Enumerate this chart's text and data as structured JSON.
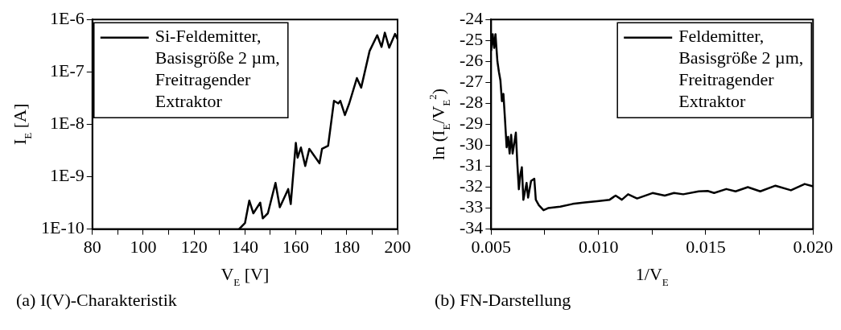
{
  "chart_data": [
    {
      "type": "line",
      "xlabel": "V$_{E}$ [V]",
      "ylabel": "I$_{E}$ [A]",
      "annotations": [
        "(a) I(V)-Charakteristik"
      ],
      "log": "y",
      "legend": "top left",
      "xlim": [
        80,
        200
      ],
      "xticks": [
        80,
        {
          "value": 90,
          "label": null
        },
        100,
        {
          "value": 110,
          "label": null
        },
        120,
        {
          "value": 130,
          "label": null
        },
        140,
        {
          "value": 150,
          "label": null
        },
        160,
        {
          "value": 170,
          "label": null
        },
        180,
        {
          "value": 190,
          "label": null
        },
        200
      ],
      "ylim": [
        1e-10,
        1e-06
      ],
      "yticks": [
        {
          "value": 1e-10,
          "label": "1E-10"
        },
        {
          "value": 1e-09,
          "label": "1E-9"
        },
        {
          "value": 1e-08,
          "label": "1E-8"
        },
        {
          "value": 1e-07,
          "label": "1E-7"
        },
        {
          "value": 1e-06,
          "label": "1E-6"
        }
      ],
      "series": [
        {
          "name": "Si-Feldemitter, Basisgröße 2 µm, Freitragender Extraktor",
          "color": "#000000",
          "x": [
            137.7,
            140,
            141.7,
            143.3,
            146,
            147,
            149,
            152,
            153.7,
            157,
            158,
            160,
            160.7,
            162,
            163.7,
            165.3,
            167,
            169.3,
            170.3,
            172.7,
            175,
            176.7,
            177.5,
            179.3,
            181,
            184,
            185.7,
            189,
            192,
            193.7,
            195,
            196.7,
            199,
            200
          ],
          "values": [
            1e-10,
            1.3e-10,
            3.5e-10,
            2e-10,
            3.2e-10,
            1.6e-10,
            2e-10,
            7.6e-10,
            2.6e-10,
            5.8e-10,
            3e-10,
            4.4e-09,
            2.3e-09,
            3.6e-09,
            1.6e-09,
            3.4e-09,
            2.6e-09,
            1.8e-09,
            3.4e-09,
            3.9e-09,
            2.8e-08,
            2.5e-08,
            2.8e-08,
            1.5e-08,
            2.5e-08,
            7.6e-08,
            5e-08,
            2.5e-07,
            5e-07,
            3e-07,
            5.6e-07,
            2.9e-07,
            5.3e-07,
            4.2e-07
          ]
        }
      ]
    },
    {
      "type": "line",
      "xlabel": "1/V$_{E}$",
      "ylabel": "ln (I$_{E}$/V$_{E}$$^{2}$)",
      "annotations": [
        "(b) FN-Darstellung"
      ],
      "legend": "top right",
      "xlim": [
        0.005,
        0.02
      ],
      "xticks": [
        {
          "value": 0.005,
          "label": "0.005"
        },
        {
          "value": 0.0075,
          "label": null
        },
        {
          "value": 0.01,
          "label": "0.010"
        },
        {
          "value": 0.0125,
          "label": null
        },
        {
          "value": 0.015,
          "label": "0.015"
        },
        {
          "value": 0.0175,
          "label": null
        },
        {
          "value": 0.02,
          "label": "0.020"
        }
      ],
      "ylim": [
        -34,
        -24
      ],
      "yticks": [
        -34,
        -33,
        -32,
        -31,
        -30,
        -29,
        -28,
        -27,
        -26,
        -25,
        -24
      ],
      "series": [
        {
          "name": "Feldemitter, Basisgröße 2 µm, Freitragender Extraktor",
          "color": "#000000",
          "x": [
            0.005,
            0.00507,
            0.00514,
            0.0052,
            0.00529,
            0.00536,
            0.00543,
            0.0055,
            0.00557,
            0.00564,
            0.00572,
            0.00579,
            0.00586,
            0.00593,
            0.006,
            0.00615,
            0.00622,
            0.00629,
            0.00636,
            0.00643,
            0.0065,
            0.00665,
            0.00672,
            0.00686,
            0.00701,
            0.00708,
            0.00722,
            0.00744,
            0.00765,
            0.00822,
            0.0088,
            0.00937,
            0.00994,
            0.01052,
            0.0108,
            0.01109,
            0.01138,
            0.0118,
            0.01252,
            0.01309,
            0.01352,
            0.01395,
            0.01467,
            0.01509,
            0.01539,
            0.01596,
            0.01639,
            0.01696,
            0.01754,
            0.01825,
            0.01897,
            0.01961,
            0.02
          ],
          "values": [
            -25.5,
            -24.7,
            -25.36,
            -24.7,
            -26.0,
            -26.5,
            -26.9,
            -27.9,
            -27.55,
            -28.7,
            -30.1,
            -29.6,
            -30.4,
            -29.5,
            -30.4,
            -29.4,
            -30.9,
            -32.1,
            -31.4,
            -31.05,
            -32.6,
            -31.8,
            -32.5,
            -31.7,
            -31.6,
            -32.6,
            -32.86,
            -33.1,
            -33.0,
            -32.93,
            -32.8,
            -32.73,
            -32.67,
            -32.6,
            -32.4,
            -32.6,
            -32.34,
            -32.54,
            -32.28,
            -32.4,
            -32.28,
            -32.34,
            -32.2,
            -32.18,
            -32.28,
            -32.09,
            -32.2,
            -32.0,
            -32.2,
            -31.93,
            -32.15,
            -31.85,
            -31.96
          ]
        }
      ]
    }
  ]
}
